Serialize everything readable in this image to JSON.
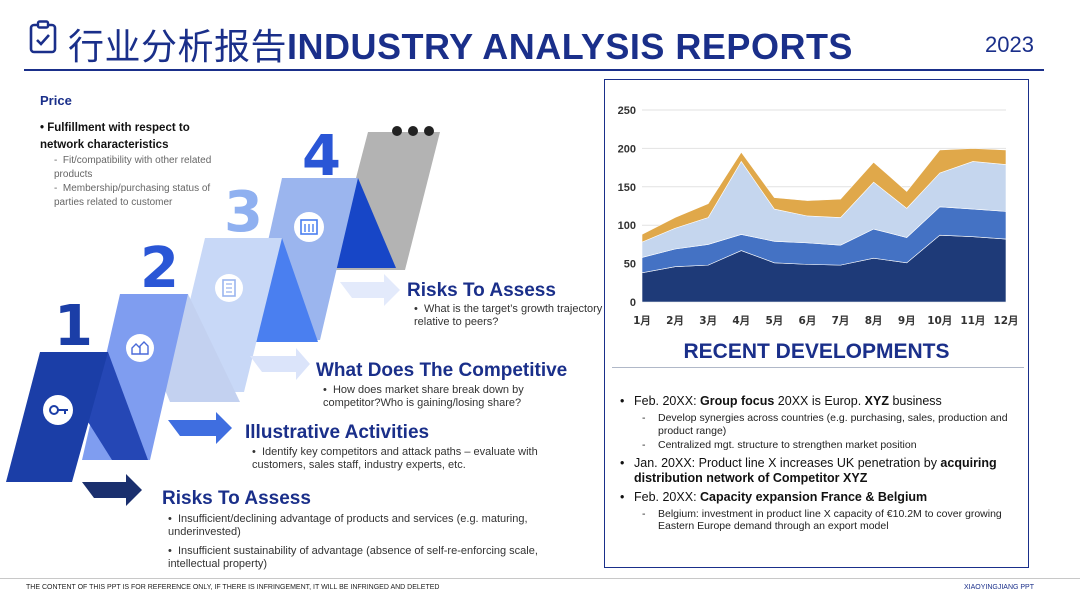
{
  "header": {
    "title_cn": "行业分析报告",
    "title_en": "INDUSTRY ANALYSIS REPORTS",
    "year": "2023"
  },
  "price": {
    "heading": "Price",
    "bullet": "Fulfillment with respect to network characteristics",
    "subs": [
      "Fit/compatibility with other related products",
      "Membership/purchasing status of parties related to customer"
    ]
  },
  "steps": [
    {
      "num": "1",
      "icon": "key-icon"
    },
    {
      "num": "2",
      "icon": "houses-icon"
    },
    {
      "num": "3",
      "icon": "building-icon"
    },
    {
      "num": "4",
      "icon": "office-icon"
    }
  ],
  "sections": [
    {
      "title": "Risks To Assess",
      "bullets": [
        "What is the target’s growth trajectory relative to peers?"
      ]
    },
    {
      "title": "What Does The Competitive",
      "bullets": [
        "How does market share break down by competitor?Who is gaining/losing share?"
      ]
    },
    {
      "title": "Illustrative Activities",
      "bullets": [
        "Identify key competitors and attack paths – evaluate with customers, sales staff, industry experts, etc."
      ]
    },
    {
      "title": "Risks To Assess",
      "bullets": [
        "Insufficient/declining advantage of products and services (e.g. maturing, underinvested)",
        "Insufficient sustainability of advantage (absence of self-re-enforcing scale, intellectual property)"
      ]
    }
  ],
  "chart_data": {
    "type": "area",
    "stacked": true,
    "categories": [
      "1月",
      "2月",
      "3月",
      "4月",
      "5月",
      "6月",
      "7月",
      "8月",
      "9月",
      "10月",
      "11月",
      "12月"
    ],
    "ylim": [
      0,
      250
    ],
    "yticks": [
      "0",
      "50",
      "100",
      "150",
      "200",
      "250"
    ],
    "grid": true,
    "series": [
      {
        "values": [
          38,
          46,
          48,
          67,
          51,
          49,
          48,
          57,
          51,
          87,
          85,
          82
        ],
        "color": "#1e3a78"
      },
      {
        "values": [
          20,
          23,
          27,
          21,
          28,
          28,
          26,
          38,
          33,
          37,
          36,
          36
        ],
        "color": "#4472c4"
      },
      {
        "values": [
          20,
          27,
          35,
          95,
          42,
          35,
          36,
          61,
          38,
          44,
          62,
          61
        ],
        "color": "#c5d6ee"
      },
      {
        "values": [
          10,
          14,
          18,
          12,
          15,
          20,
          24,
          26,
          22,
          30,
          17,
          19
        ],
        "color": "#e0a84a"
      }
    ]
  },
  "recent": {
    "heading": "RECENT DEVELOPMENTS",
    "items": [
      {
        "pre": "Feb. 20XX: ",
        "b1": "Group focus",
        "mid": " 20XX is Europ. ",
        "b2": "XYZ",
        "post": " business",
        "subs": [
          "Develop synergies across countries (e.g. purchasing, sales, production and product range)",
          "Centralized mgt. structure to strengthen market position"
        ]
      },
      {
        "pre": "Jan. 20XX: Product line X increases UK penetration by ",
        "b1": "acquiring distribution network of Competitor XYZ",
        "mid": "",
        "b2": "",
        "post": "",
        "subs": []
      },
      {
        "pre": "Feb. 20XX: ",
        "b1": "Capacity expansion France & Belgium",
        "mid": "",
        "b2": "",
        "post": "",
        "subs": [
          "Belgium: investment in product line X capacity of €10.2M to cover growing Eastern Europe demand through an export model"
        ]
      }
    ]
  },
  "footer": {
    "left": "THE CONTENT OF THIS PPT IS FOR REFERENCE ONLY, IF THERE IS INFRINGEMENT, IT WILL BE INFRINGED AND DELETED",
    "right": "XIAOYINGJIANG PPT"
  }
}
